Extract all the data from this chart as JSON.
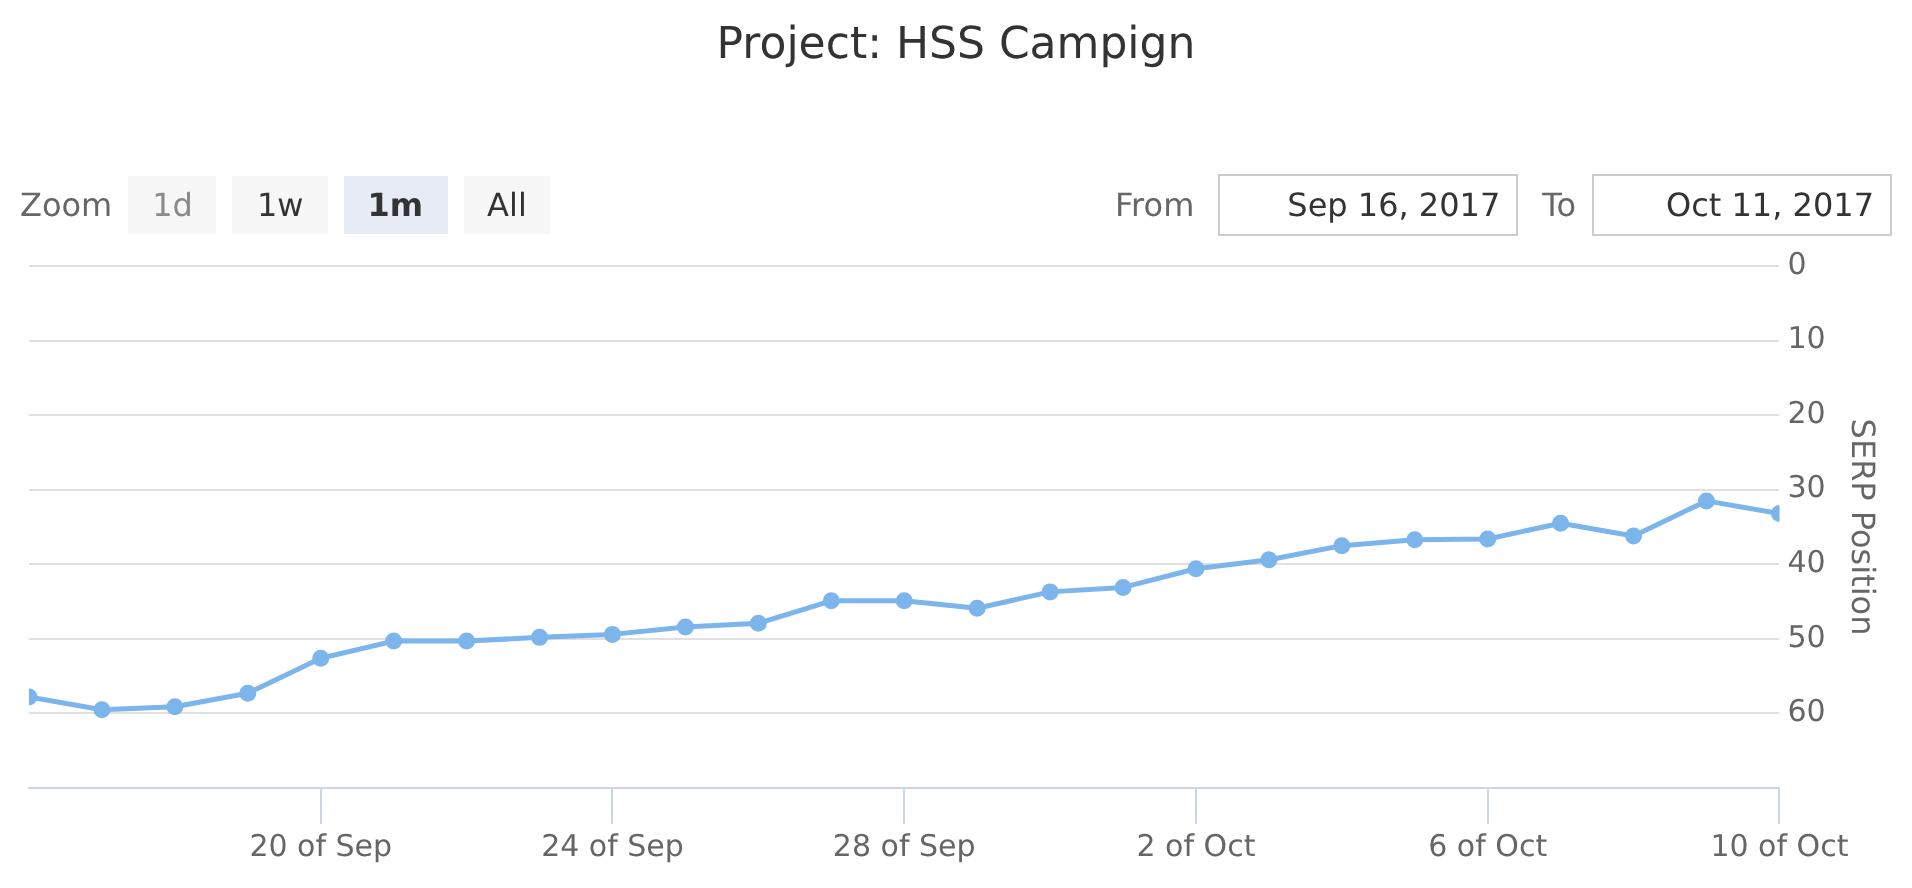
{
  "chart_data": {
    "type": "line",
    "title": "Project: HSS Campign",
    "ylabel": "SERP Position",
    "annotations": [
      "Zoom",
      "1d",
      "1w",
      "1m",
      "All",
      "From",
      "Sep 16, 2017",
      "To",
      "Oct 11, 2017"
    ],
    "x": [
      "2017-09-16",
      "2017-09-17",
      "2017-09-18",
      "2017-09-19",
      "2017-09-20",
      "2017-09-21",
      "2017-09-22",
      "2017-09-23",
      "2017-09-24",
      "2017-09-25",
      "2017-09-26",
      "2017-09-27",
      "2017-09-28",
      "2017-09-29",
      "2017-09-30",
      "2017-10-01",
      "2017-10-02",
      "2017-10-03",
      "2017-10-04",
      "2017-10-05",
      "2017-10-06",
      "2017-10-07",
      "2017-10-08",
      "2017-10-09",
      "2017-10-10"
    ],
    "series": [
      {
        "color": "#7cb5ec",
        "values": [
          57.8,
          59.5,
          59.1,
          57.3,
          52.6,
          50.3,
          50.3,
          49.8,
          49.4,
          48.4,
          47.9,
          44.9,
          44.9,
          45.9,
          43.7,
          43.1,
          40.6,
          39.4,
          37.5,
          36.7,
          36.6,
          34.5,
          36.2,
          31.5,
          33.2
        ]
      }
    ],
    "xlim": [
      "2017-09-16",
      "2017-10-10"
    ],
    "xticks": [
      {
        "value": "2017-09-20",
        "label": "20 of Sep"
      },
      {
        "value": "2017-09-24",
        "label": "24 of Sep"
      },
      {
        "value": "2017-09-28",
        "label": "28 of Sep"
      },
      {
        "value": "2017-10-02",
        "label": "2 of Oct"
      },
      {
        "value": "2017-10-06",
        "label": "6 of Oct"
      },
      {
        "value": "2017-10-10",
        "label": "10 of Oct"
      }
    ],
    "ylim": [
      70,
      0
    ],
    "yticks": [
      0,
      10,
      20,
      30,
      40,
      50,
      60
    ],
    "grid": "y",
    "legend": false,
    "marker": "circle",
    "line_style": "solid"
  }
}
